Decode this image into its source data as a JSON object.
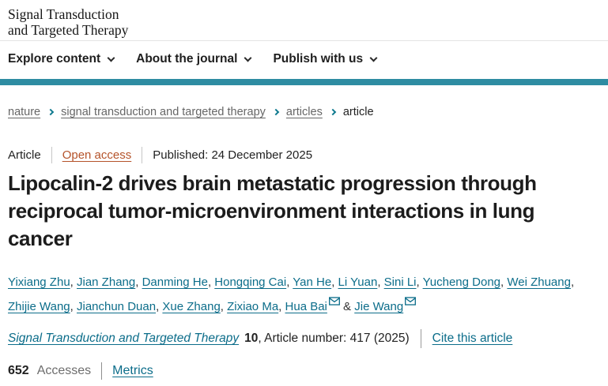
{
  "header": {
    "logo_line1": "Signal Transduction",
    "logo_line2": "and Targeted Therapy",
    "nav_items": [
      "Explore content",
      "About the journal",
      "Publish with us"
    ]
  },
  "breadcrumb": [
    {
      "label": "nature",
      "current": false
    },
    {
      "label": "signal transduction and targeted therapy",
      "current": false
    },
    {
      "label": "articles",
      "current": false
    },
    {
      "label": "article",
      "current": true
    }
  ],
  "article": {
    "type": "Article",
    "access": "Open access",
    "published": "Published: 24 December 2025",
    "title": "Lipocalin-2 drives brain metastatic progression through reciprocal tumor-microenvironment interactions in lung cancer",
    "authors": [
      {
        "name": "Yixiang Zhu",
        "email": false
      },
      {
        "name": "Jian Zhang",
        "email": false
      },
      {
        "name": "Danming He",
        "email": false
      },
      {
        "name": "Hongqing Cai",
        "email": false
      },
      {
        "name": "Yan He",
        "email": false
      },
      {
        "name": "Li Yuan",
        "email": false
      },
      {
        "name": "Sini Li",
        "email": false
      },
      {
        "name": "Yucheng Dong",
        "email": false
      },
      {
        "name": "Wei Zhuang",
        "email": false
      },
      {
        "name": "Zhijie Wang",
        "email": false
      },
      {
        "name": "Jianchun Duan",
        "email": false
      },
      {
        "name": "Xue Zhang",
        "email": false
      },
      {
        "name": "Zixiao Ma",
        "email": false
      },
      {
        "name": "Hua Bai",
        "email": true
      },
      {
        "name": "Jie Wang",
        "email": true
      }
    ],
    "citation": {
      "journal": "Signal Transduction and Targeted Therapy",
      "volume": "10",
      "rest": ", Article number: 417 (2025)",
      "cite_link": "Cite this article"
    },
    "metrics": {
      "accesses_count": "652",
      "accesses_label": "Accesses",
      "metrics_link": "Metrics"
    }
  },
  "colors": {
    "teal_bar": "#2e8ca2",
    "link": "#0c6d8a",
    "open_access": "#b5532a",
    "breadcrumb_chevron": "#0f7a8f"
  }
}
